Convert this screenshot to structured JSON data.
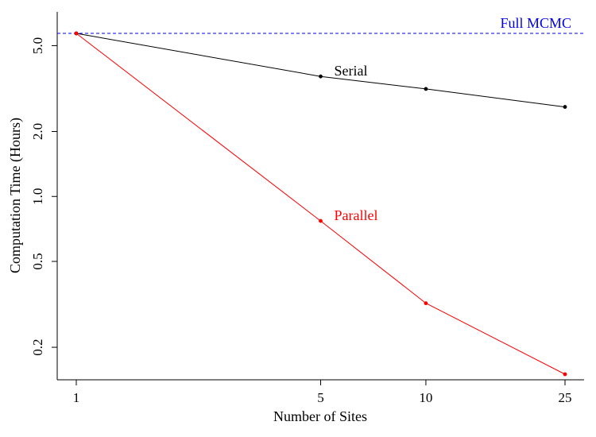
{
  "chart_data": {
    "type": "line",
    "x_scale": "log",
    "y_scale": "log",
    "xlabel": "Number of Sites",
    "ylabel": "Computation Time (Hours)",
    "x_ticks": [
      1,
      5,
      10,
      25
    ],
    "y_ticks": [
      0.2,
      0.5,
      1.0,
      2.0,
      5.0
    ],
    "y_tick_labels": [
      "0.2",
      "0.5",
      "1.0",
      "2.0",
      "5.0"
    ],
    "xlim": [
      1,
      25
    ],
    "ylim": [
      0.14,
      6.4
    ],
    "grid": false,
    "series": [
      {
        "name": "Serial",
        "color": "#000000",
        "x": [
          1,
          5,
          10,
          25
        ],
        "y": [
          5.7,
          3.6,
          3.15,
          2.6
        ],
        "label_at_x": 5
      },
      {
        "name": "Parallel",
        "color": "#ff0000",
        "x": [
          1,
          5,
          10,
          25
        ],
        "y": [
          5.7,
          0.77,
          0.32,
          0.15
        ],
        "label_at_x": 5
      }
    ],
    "reference_lines": [
      {
        "name": "Full MCMC",
        "y": 5.7,
        "color": "#0000ee",
        "style": "dashed"
      }
    ]
  }
}
